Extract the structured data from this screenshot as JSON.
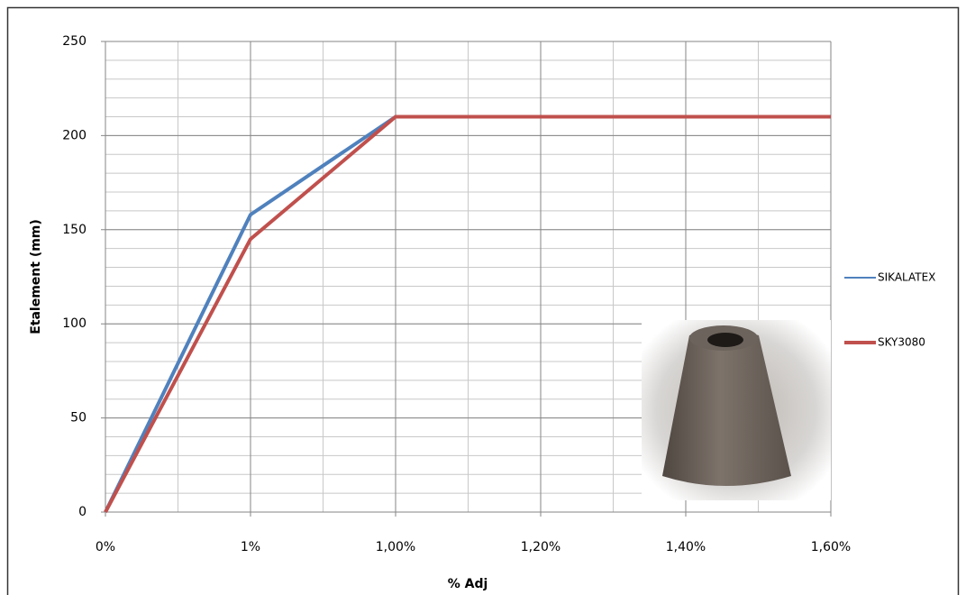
{
  "chart_data": {
    "type": "line",
    "xlabel": "% Adj",
    "ylabel": "Etalement (mm)",
    "categories": [
      "0%",
      "1%",
      "1,00%",
      "1,20%",
      "1,40%",
      "1,60%"
    ],
    "series": [
      {
        "name": "SIKALATEX",
        "color": "#4f81bd",
        "values": [
          0,
          158,
          210,
          210,
          210,
          210
        ]
      },
      {
        "name": "SKY3080",
        "color": "#c0504d",
        "values": [
          0,
          145,
          210,
          210,
          210,
          210
        ]
      }
    ],
    "ylim": [
      0,
      250
    ],
    "yticks": [
      0,
      50,
      100,
      150,
      200,
      250
    ],
    "grid": true,
    "legend": "right"
  }
}
